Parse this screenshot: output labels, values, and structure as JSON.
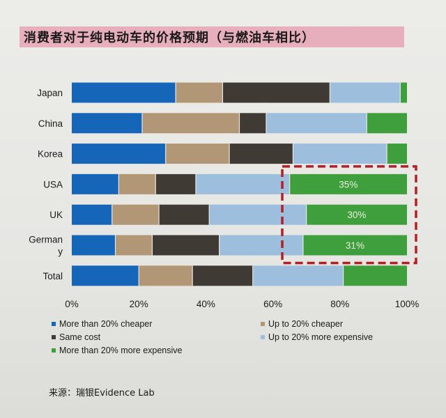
{
  "title": "消费者对于纯电动车的价格预期（与燃油车相比）",
  "source": "来源：瑞银Evidence Lab",
  "colors": {
    "more_cheaper": "#1565b8",
    "up_cheaper": "#b29776",
    "same": "#3f3a33",
    "up_expensive": "#9ebede",
    "more_expensive": "#3e9f3c",
    "highlight": "#b51f24",
    "label_text": "#e8f2e0"
  },
  "chart_data": {
    "type": "bar",
    "orientation": "horizontal",
    "stacked": true,
    "categories": [
      "Japan",
      "China",
      "Korea",
      "USA",
      "UK",
      "German y",
      "Total"
    ],
    "category_labels": [
      [
        "Japan"
      ],
      [
        "China"
      ],
      [
        "Korea"
      ],
      [
        "USA"
      ],
      [
        "UK"
      ],
      [
        "German",
        "y"
      ],
      [
        "Total"
      ]
    ],
    "series": [
      {
        "name": "More than 20% cheaper",
        "color": "#1565b8",
        "values": [
          31,
          21,
          28,
          14,
          12,
          13,
          20
        ]
      },
      {
        "name": "Up to 20% cheaper",
        "color": "#b29776",
        "values": [
          14,
          29,
          19,
          11,
          14,
          11,
          16
        ]
      },
      {
        "name": "Same cost",
        "color": "#3f3a33",
        "values": [
          32,
          8,
          19,
          12,
          15,
          20,
          18
        ]
      },
      {
        "name": "Up to 20% more expensive",
        "color": "#9ebede",
        "values": [
          21,
          30,
          28,
          28,
          29,
          25,
          27
        ]
      },
      {
        "name": "More than 20% more expensive",
        "color": "#3e9f3c",
        "values": [
          2,
          12,
          6,
          35,
          30,
          31,
          19
        ]
      }
    ],
    "data_labels": [
      {
        "category": "USA",
        "series": "More than 20% more expensive",
        "text": "35%"
      },
      {
        "category": "UK",
        "series": "More than 20% more expensive",
        "text": "30%"
      },
      {
        "category": "German y",
        "series": "More than 20% more expensive",
        "text": "31%"
      }
    ],
    "xticks": [
      "0%",
      "20%",
      "40%",
      "60%",
      "80%",
      "100%"
    ],
    "xlim": [
      0,
      100
    ],
    "grid": false,
    "legend_position": "bottom",
    "highlight_box": {
      "categories": [
        "USA",
        "UK",
        "German y"
      ],
      "x_range": [
        63,
        100
      ]
    }
  }
}
